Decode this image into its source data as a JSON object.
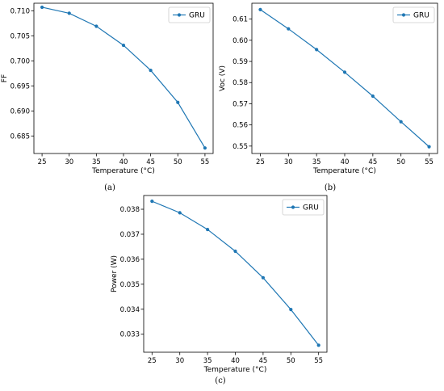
{
  "line_color": "#1f77b4",
  "chart_data": [
    {
      "type": "line",
      "panel": "(a)",
      "x": [
        25,
        30,
        35,
        40,
        45,
        50,
        55
      ],
      "series": [
        {
          "name": "GRU",
          "values": [
            0.7107,
            0.7095,
            0.7069,
            0.7031,
            0.6981,
            0.6917,
            0.6826
          ]
        }
      ],
      "xlabel": "Temperature (°C)",
      "ylabel": "FF",
      "xlim": [
        23.5,
        56.5
      ],
      "ylim": [
        0.6815,
        0.7115
      ],
      "xticks": [
        25,
        30,
        35,
        40,
        45,
        50,
        55
      ],
      "yticks": [
        0.685,
        0.69,
        0.695,
        0.7,
        0.705,
        0.71
      ],
      "ytick_labels": [
        "0.685",
        "0.690",
        "0.695",
        "0.700",
        "0.705",
        "0.710"
      ],
      "legend": "top-right",
      "grid": false
    },
    {
      "type": "line",
      "panel": "(b)",
      "x": [
        25,
        30,
        35,
        40,
        45,
        50,
        55
      ],
      "series": [
        {
          "name": "GRU",
          "values": [
            0.6145,
            0.6054,
            0.5956,
            0.5849,
            0.5736,
            0.5615,
            0.5497
          ]
        }
      ],
      "xlabel": "Temperature (°C)",
      "ylabel": "Voc (V)",
      "xlim": [
        23.5,
        56.5
      ],
      "ylim": [
        0.5465,
        0.6175
      ],
      "xticks": [
        25,
        30,
        35,
        40,
        45,
        50,
        55
      ],
      "yticks": [
        0.55,
        0.56,
        0.57,
        0.58,
        0.59,
        0.6,
        0.61
      ],
      "ytick_labels": [
        "0.55",
        "0.56",
        "0.57",
        "0.58",
        "0.59",
        "0.60",
        "0.61"
      ],
      "legend": "top-right",
      "grid": false
    },
    {
      "type": "line",
      "panel": "(c)",
      "x": [
        25,
        30,
        35,
        40,
        45,
        50,
        55
      ],
      "series": [
        {
          "name": "GRU",
          "values": [
            0.03832,
            0.03786,
            0.03719,
            0.03632,
            0.03526,
            0.03399,
            0.03256
          ]
        }
      ],
      "xlabel": "Temperature (°C)",
      "ylabel": "Power (W)",
      "xlim": [
        23.5,
        56.5
      ],
      "ylim": [
        0.03228,
        0.03855
      ],
      "xticks": [
        25,
        30,
        35,
        40,
        45,
        50,
        55
      ],
      "yticks": [
        0.033,
        0.034,
        0.035,
        0.036,
        0.037,
        0.038
      ],
      "ytick_labels": [
        "0.033",
        "0.034",
        "0.035",
        "0.036",
        "0.037",
        "0.038"
      ],
      "legend": "top-right",
      "grid": false
    }
  ]
}
